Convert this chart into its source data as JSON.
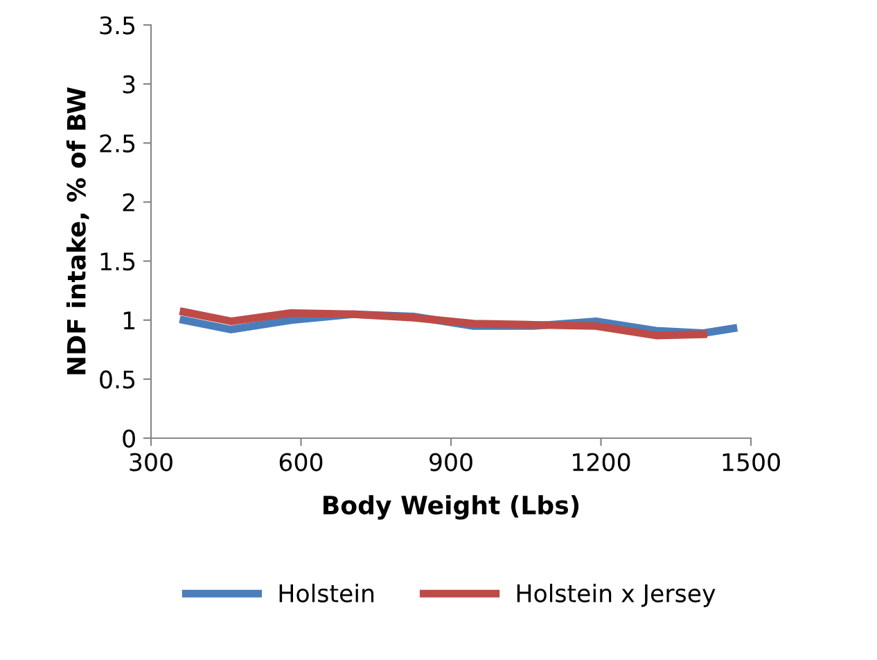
{
  "chart_data": {
    "type": "line",
    "xlabel": "Body Weight (Lbs)",
    "ylabel": "NDF intake, % of BW",
    "xlim": [
      300,
      1500
    ],
    "xticks": [
      300,
      600,
      900,
      1200,
      1500
    ],
    "ylim": [
      0,
      3.5
    ],
    "yticks": [
      0,
      0.5,
      1,
      1.5,
      2,
      2.5,
      3,
      3.5
    ],
    "grid": false,
    "legend": "bottom",
    "marker": "none",
    "line_style": "solid",
    "series": [
      {
        "name": "Holstein",
        "color": "#4a7ebb",
        "x": [
          365,
          460,
          580,
          705,
          825,
          945,
          1065,
          1190,
          1310,
          1405,
          1465
        ],
        "values": [
          1.0,
          0.92,
          1.0,
          1.05,
          1.03,
          0.95,
          0.95,
          0.99,
          0.91,
          0.89,
          0.93
        ]
      },
      {
        "name": "Holstein x Jersey",
        "color": "#be4b48",
        "x": [
          365,
          460,
          580,
          705,
          825,
          945,
          1065,
          1190,
          1310,
          1405
        ],
        "values": [
          1.07,
          0.99,
          1.06,
          1.05,
          1.02,
          0.97,
          0.96,
          0.95,
          0.87,
          0.88
        ]
      }
    ]
  }
}
